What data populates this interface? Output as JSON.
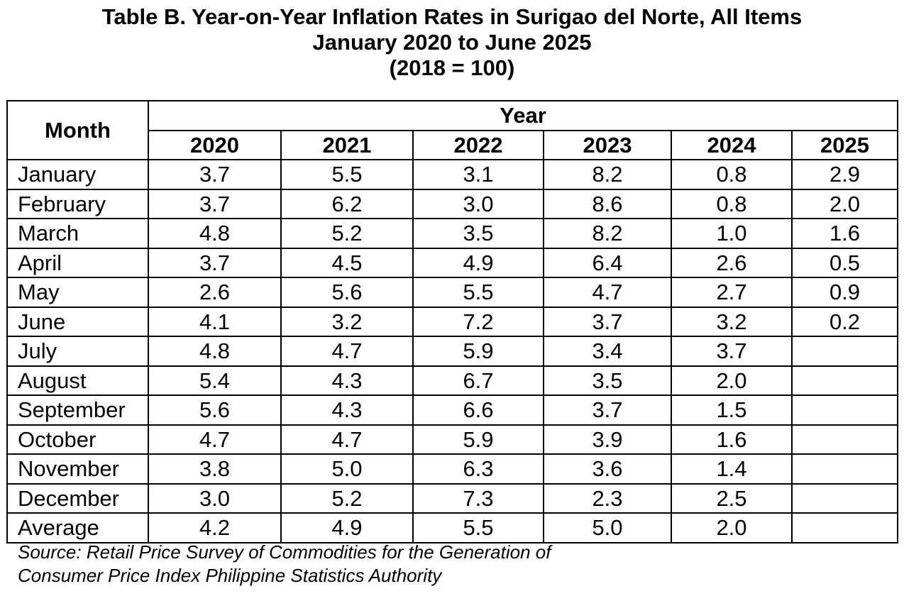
{
  "title": {
    "line1": "Table B. Year-on-Year Inflation Rates in Surigao del Norte, All Items",
    "line2": "January 2020 to June 2025",
    "line3": "(2018 = 100)"
  },
  "table": {
    "month_header": "Month",
    "year_header": "Year",
    "years": [
      "2020",
      "2021",
      "2022",
      "2023",
      "2024",
      "2025"
    ],
    "rows": [
      {
        "month": "January",
        "values": [
          "3.7",
          "5.5",
          "3.1",
          "8.2",
          "0.8",
          "2.9"
        ]
      },
      {
        "month": "February",
        "values": [
          "3.7",
          "6.2",
          "3.0",
          "8.6",
          "0.8",
          "2.0"
        ]
      },
      {
        "month": "March",
        "values": [
          "4.8",
          "5.2",
          "3.5",
          "8.2",
          "1.0",
          "1.6"
        ]
      },
      {
        "month": "April",
        "values": [
          "3.7",
          "4.5",
          "4.9",
          "6.4",
          "2.6",
          "0.5"
        ]
      },
      {
        "month": "May",
        "values": [
          "2.6",
          "5.6",
          "5.5",
          "4.7",
          "2.7",
          "0.9"
        ]
      },
      {
        "month": "June",
        "values": [
          "4.1",
          "3.2",
          "7.2",
          "3.7",
          "3.2",
          "0.2"
        ]
      },
      {
        "month": "July",
        "values": [
          "4.8",
          "4.7",
          "5.9",
          "3.4",
          "3.7",
          ""
        ]
      },
      {
        "month": "August",
        "values": [
          "5.4",
          "4.3",
          "6.7",
          "3.5",
          "2.0",
          ""
        ]
      },
      {
        "month": "September",
        "values": [
          "5.6",
          "4.3",
          "6.6",
          "3.7",
          "1.5",
          ""
        ]
      },
      {
        "month": "October",
        "values": [
          "4.7",
          "4.7",
          "5.9",
          "3.9",
          "1.6",
          ""
        ]
      },
      {
        "month": "November",
        "values": [
          "3.8",
          "5.0",
          "6.3",
          "3.6",
          "1.4",
          ""
        ]
      },
      {
        "month": "December",
        "values": [
          "3.0",
          "5.2",
          "7.3",
          "2.3",
          "2.5",
          ""
        ]
      },
      {
        "month": "Average",
        "values": [
          "4.2",
          "4.9",
          "5.5",
          "5.0",
          "2.0",
          ""
        ]
      }
    ]
  },
  "source": {
    "line1": "Source: Retail Price Survey of Commodities for the Generation of",
    "line2": "Consumer Price Index Philippine Statistics Authority"
  }
}
